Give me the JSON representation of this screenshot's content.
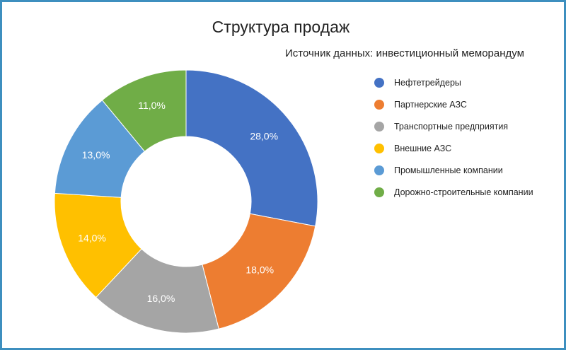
{
  "chart_data": {
    "type": "pie",
    "title": "Структура продаж",
    "subtitle": "Источник данных: инвестиционный меморандум",
    "categories": [
      "Нефтетрейдеры",
      "Партнерские АЗС",
      "Транспортные предприятия",
      "Внешние АЗС",
      "Промышленные компании",
      "Дорожно-строительные компании"
    ],
    "values": [
      28.0,
      18.0,
      16.0,
      14.0,
      13.0,
      11.0
    ],
    "value_labels": [
      "28,0%",
      "18,0%",
      "16,0%",
      "14,0%",
      "13,0%",
      "11,0%"
    ],
    "colors": [
      "#4472c4",
      "#ed7d31",
      "#a5a5a5",
      "#ffc000",
      "#5b9bd5",
      "#70ad47"
    ],
    "donut": true,
    "legend_position": "right"
  }
}
